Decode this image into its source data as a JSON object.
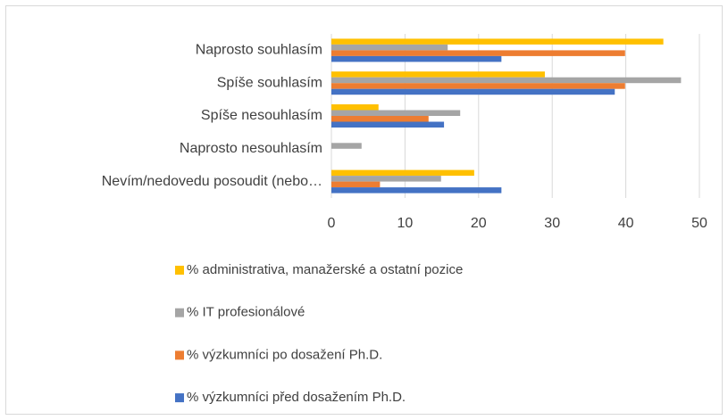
{
  "chart_data": {
    "type": "bar",
    "orientation": "horizontal",
    "categories": [
      "Naprosto souhlasím",
      "Spíše souhlasím",
      "Spíše nesouhlasím",
      "Naprosto nesouhlasím",
      "Nevím/nedovedu posoudit (nebo…"
    ],
    "series": [
      {
        "name": "% administrativa, manažerské a ostatní pozice",
        "color": "#ffc000",
        "values": [
          45.1,
          29.0,
          6.4,
          0,
          19.4
        ]
      },
      {
        "name": "% IT profesionálové",
        "color": "#a5a5a5",
        "values": [
          15.8,
          47.5,
          17.5,
          4.1,
          14.9
        ]
      },
      {
        "name": "% výzkumníci po dosažení Ph.D.",
        "color": "#ed7d31",
        "values": [
          39.9,
          39.9,
          13.2,
          0,
          6.6
        ]
      },
      {
        "name": "% výzkumníci před dosažením Ph.D.",
        "color": "#4472c4",
        "values": [
          23.1,
          38.5,
          15.3,
          0,
          23.1
        ]
      }
    ],
    "xlim": [
      0,
      50
    ],
    "xticks": [
      0,
      10,
      20,
      30,
      40,
      50
    ],
    "grid": true,
    "legend": "bottom"
  }
}
